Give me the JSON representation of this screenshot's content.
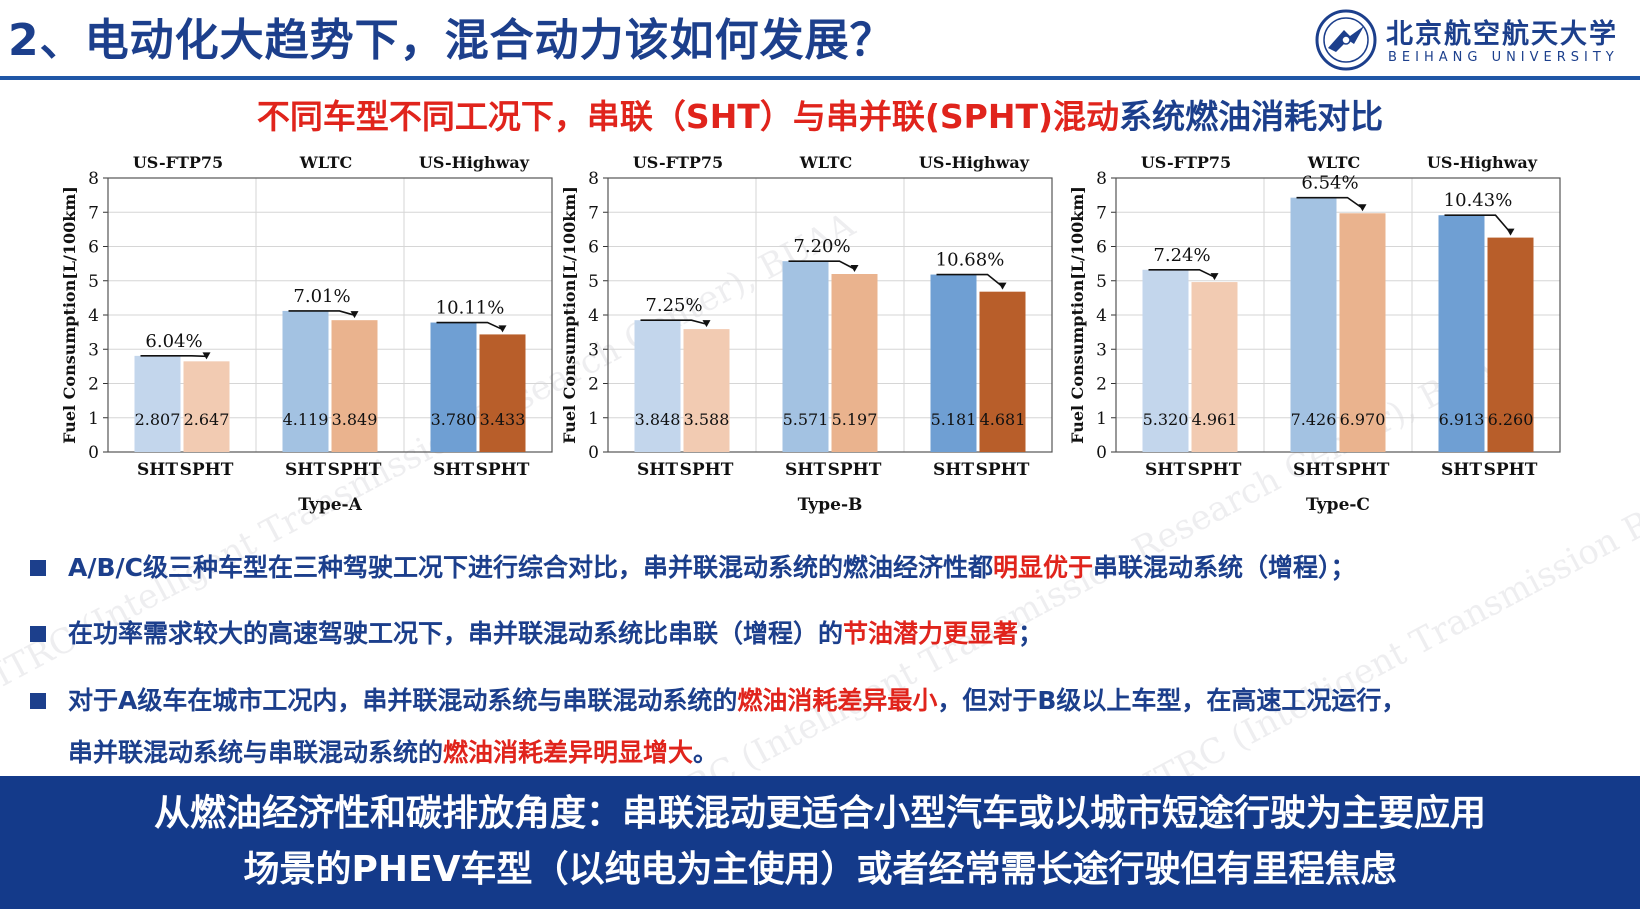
{
  "slide": {
    "title": "2、电动化大趋势下，混合动力该如何发展？",
    "logo": {
      "cn": "北京航空航天大学",
      "en": "BEIHANG UNIVERSITY"
    },
    "subtitle": {
      "part1": "不同车型不同工况下，",
      "part2": "串联（SHT）与串并联(SPHT)混动",
      "part3": "系统燃油消耗对比"
    }
  },
  "chart_data": [
    {
      "type": "bar",
      "title": "",
      "xlabel": "Type-A",
      "ylabel": "Fuel Consumption[L/100km]",
      "ylim": [
        0,
        8
      ],
      "yticks": [
        0,
        1,
        2,
        3,
        4,
        5,
        6,
        7,
        8
      ],
      "grid": true,
      "groups": [
        {
          "name": "US-FTP75",
          "labels": [
            "SHT",
            "SPHT"
          ],
          "values": [
            2.807,
            2.647
          ],
          "value_labels": [
            "2.807",
            "2.647"
          ],
          "diff": "6.04%"
        },
        {
          "name": "WLTC",
          "labels": [
            "SHT",
            "SPHT"
          ],
          "values": [
            4.119,
            3.849
          ],
          "value_labels": [
            "4.119",
            "3.849"
          ],
          "diff": "7.01%"
        },
        {
          "name": "US-Highway",
          "labels": [
            "SHT",
            "SPHT"
          ],
          "values": [
            3.78,
            3.433
          ],
          "value_labels": [
            "3.780",
            "3.433"
          ],
          "diff": "10.11%"
        }
      ]
    },
    {
      "type": "bar",
      "title": "",
      "xlabel": "Type-B",
      "ylabel": "Fuel Consumption[L/100km]",
      "ylim": [
        0,
        8
      ],
      "yticks": [
        0,
        1,
        2,
        3,
        4,
        5,
        6,
        7,
        8
      ],
      "grid": true,
      "groups": [
        {
          "name": "US-FTP75",
          "labels": [
            "SHT",
            "SPHT"
          ],
          "values": [
            3.848,
            3.588
          ],
          "value_labels": [
            "3.848",
            "3.588"
          ],
          "diff": "7.25%"
        },
        {
          "name": "WLTC",
          "labels": [
            "SHT",
            "SPHT"
          ],
          "values": [
            5.571,
            5.197
          ],
          "value_labels": [
            "5.571",
            "5.197"
          ],
          "diff": "7.20%"
        },
        {
          "name": "US-Highway",
          "labels": [
            "SHT",
            "SPHT"
          ],
          "values": [
            5.181,
            4.681
          ],
          "value_labels": [
            "5.181",
            "4.681"
          ],
          "diff": "10.68%"
        }
      ]
    },
    {
      "type": "bar",
      "title": "",
      "xlabel": "Type-C",
      "ylabel": "Fuel Consumption[L/100km]",
      "ylim": [
        0,
        8
      ],
      "yticks": [
        0,
        1,
        2,
        3,
        4,
        5,
        6,
        7,
        8
      ],
      "grid": true,
      "groups": [
        {
          "name": "US-FTP75",
          "labels": [
            "SHT",
            "SPHT"
          ],
          "values": [
            5.32,
            4.961
          ],
          "value_labels": [
            "5.320",
            "4.961"
          ],
          "diff": "7.24%"
        },
        {
          "name": "WLTC",
          "labels": [
            "SHT",
            "SPHT"
          ],
          "values": [
            7.426,
            6.97
          ],
          "value_labels": [
            "7.426",
            "6.970"
          ],
          "diff": "6.54%"
        },
        {
          "name": "US-Highway",
          "labels": [
            "SHT",
            "SPHT"
          ],
          "values": [
            6.913,
            6.26
          ],
          "value_labels": [
            "6.913",
            "6.260"
          ],
          "diff": "10.43%"
        }
      ]
    }
  ],
  "colors": {
    "groups": [
      [
        "#c3d6ec",
        "#f2cbb2"
      ],
      [
        "#a3c2e2",
        "#eab38e"
      ],
      [
        "#6f9fd3",
        "#b85e2a"
      ]
    ],
    "title_navy": "#1c3f8c",
    "highlight_red": "#e0241c",
    "banner_bg": "#143a8a"
  },
  "bullets": [
    {
      "parts": [
        {
          "text": "A/B/C级三种车型在三种驾驶工况下进行综合对比，串并联混动系统的燃油经济性都",
          "hl": false
        },
        {
          "text": "明显优于",
          "hl": true
        },
        {
          "text": "串联混动系统（增程）；",
          "hl": false
        }
      ]
    },
    {
      "parts": [
        {
          "text": "在功率需求较大的高速驾驶工况下，串并联混动系统比串联（增程）的",
          "hl": false
        },
        {
          "text": "节油潜力更显著",
          "hl": true
        },
        {
          "text": "；",
          "hl": false
        }
      ]
    },
    {
      "parts": [
        {
          "text": "对于A级车在城市工况内，串并联混动系统与串联混动系统的",
          "hl": false
        },
        {
          "text": "燃油消耗差异最小",
          "hl": true
        },
        {
          "text": "，但对于B级以上车型，在高速工况运行，",
          "hl": false
        }
      ]
    },
    {
      "parts": [
        {
          "text": "串并联混动系统与串联混动系统的",
          "hl": false
        },
        {
          "text": "燃油消耗差异明显增大",
          "hl": true
        },
        {
          "text": "。",
          "hl": false
        }
      ]
    }
  ],
  "conclusion": {
    "line1": "从燃油经济性和碳排放角度：串联混动更适合小型汽车或以城市短途行驶为主要应用",
    "line2": "场景的PHEV车型（以纯电为主使用）或者经常需长途行驶但有里程焦虑"
  },
  "watermark": "ITRC (Intelligent Transmission Research Center), BUAA"
}
